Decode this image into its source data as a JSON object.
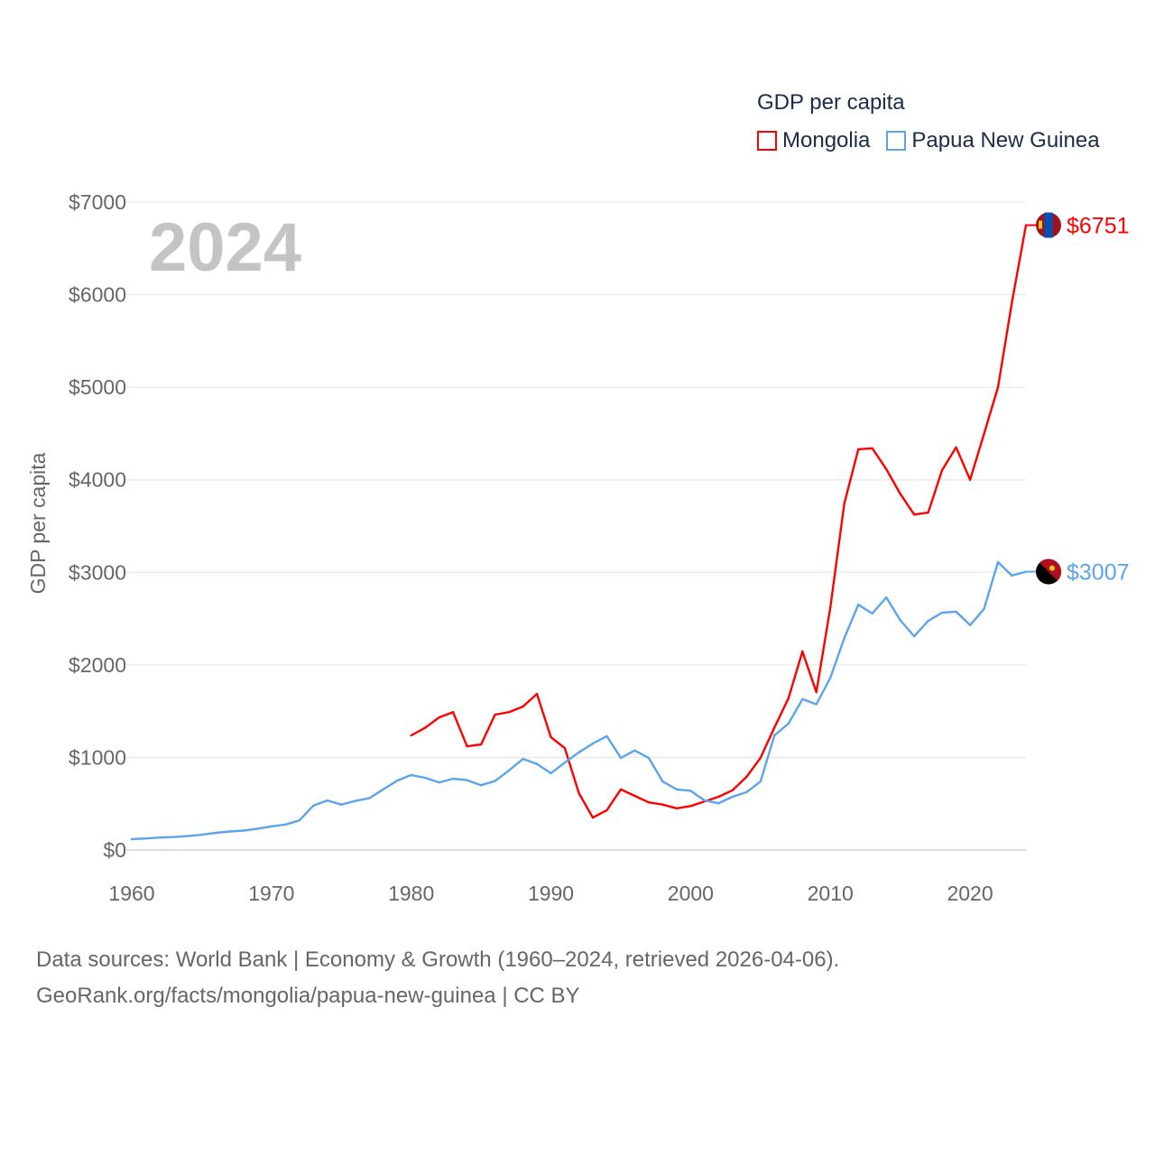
{
  "chart_data": {
    "type": "line",
    "title": "GDP per capita",
    "ylabel": "GDP per capita",
    "xlabel": "",
    "year_label": "2024",
    "xlim": [
      1960,
      2024
    ],
    "ylim": [
      0,
      7000
    ],
    "x_ticks": [
      "1960",
      "1970",
      "1980",
      "1990",
      "2000",
      "2010",
      "2020"
    ],
    "y_ticks": [
      "$0",
      "$1000",
      "$2000",
      "$3000",
      "$4000",
      "$5000",
      "$6000",
      "$7000"
    ],
    "grid": true,
    "legend_position": "top-right",
    "series": [
      {
        "name": "Mongolia",
        "color": "#ff0000",
        "start_year": 1980,
        "end_label": "$6751",
        "values": [
          1238,
          1320,
          1433,
          1490,
          1120,
          1140,
          1462,
          1490,
          1550,
          1687,
          1220,
          1100,
          615,
          350,
          430,
          655,
          585,
          515,
          490,
          450,
          475,
          525,
          575,
          645,
          790,
          995,
          1325,
          1640,
          2145,
          1705,
          2620,
          3745,
          4330,
          4340,
          4115,
          3850,
          3625,
          3645,
          4105,
          4350,
          4000,
          4495,
          5000,
          5920,
          6751
        ]
      },
      {
        "name": "Papua New Guinea",
        "color": "#5ba4ec",
        "start_year": 1960,
        "end_label": "$3007",
        "values": [
          117,
          125,
          135,
          140,
          150,
          165,
          185,
          200,
          210,
          230,
          255,
          275,
          320,
          480,
          535,
          490,
          530,
          560,
          655,
          750,
          810,
          780,
          730,
          770,
          755,
          700,
          745,
          860,
          985,
          930,
          830,
          945,
          1055,
          1150,
          1230,
          995,
          1075,
          995,
          740,
          655,
          640,
          535,
          505,
          575,
          625,
          740,
          1240,
          1365,
          1630,
          1575,
          1860,
          2290,
          2650,
          2555,
          2730,
          2485,
          2310,
          2475,
          2565,
          2575,
          2430,
          2605,
          3110,
          2965,
          3007
        ]
      }
    ]
  },
  "footer": {
    "line1": "Data sources: World Bank | Economy & Growth (1960–2024, retrieved 2026-04-06).",
    "line2": "GeoRank.org/facts/mongolia/papua-new-guinea | CC BY"
  }
}
